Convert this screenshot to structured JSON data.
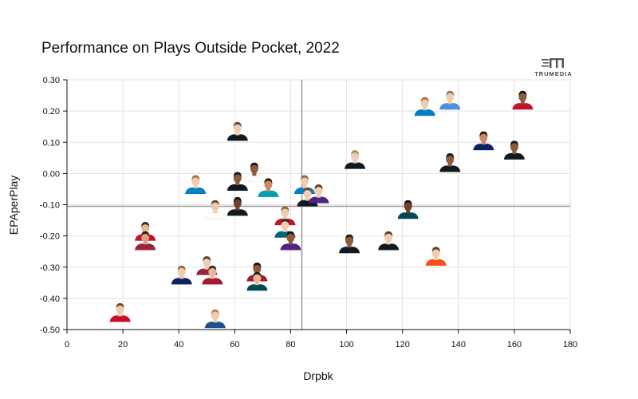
{
  "chart_data": {
    "type": "scatter",
    "title": "Performance on Plays Outside Pocket, 2022",
    "xlabel": "Drpbk",
    "ylabel": "EPAperPlay",
    "xlim": [
      0,
      180
    ],
    "ylim": [
      -0.5,
      0.3
    ],
    "xticks": [
      "0",
      "20",
      "40",
      "60",
      "80",
      "100",
      "120",
      "140",
      "160",
      "180"
    ],
    "yticks": [
      "0.30",
      "0.20",
      "0.10",
      "0.00",
      "-0.10",
      "-0.20",
      "-0.30",
      "-0.40",
      "-0.50"
    ],
    "grid": true,
    "reference_lines": {
      "x": 84,
      "y": -0.105
    },
    "points": [
      {
        "x": 19,
        "y": -0.46,
        "jersey": "#c8102e",
        "skin": "#f0cdb0",
        "hair": "#6b4a2b"
      },
      {
        "x": 28,
        "y": -0.2,
        "jersey": "#c8102e",
        "skin": "#e8b894",
        "hair": "#3b2a1c"
      },
      {
        "x": 28,
        "y": -0.23,
        "jersey": "#97233f",
        "skin": "#d9a07a",
        "hair": "#2b1d12"
      },
      {
        "x": 41,
        "y": -0.34,
        "jersey": "#0b2265",
        "skin": "#f0cdb0",
        "hair": "#8a6a45"
      },
      {
        "x": 46,
        "y": -0.05,
        "jersey": "#0080c6",
        "skin": "#f0cdb0",
        "hair": "#a07850"
      },
      {
        "x": 50,
        "y": -0.31,
        "jersey": "#97233f",
        "skin": "#f0cdb0",
        "hair": "#5a3e28"
      },
      {
        "x": 52,
        "y": -0.34,
        "jersey": "#a71930",
        "skin": "#e8b894",
        "hair": "#3b2a1c"
      },
      {
        "x": 53,
        "y": -0.48,
        "jersey": "#1d4f91",
        "skin": "#f0cdb0",
        "hair": "#b08a5a"
      },
      {
        "x": 53,
        "y": -0.13,
        "jersey": "#ffffff",
        "skin": "#f0cdb0",
        "hair": "#6b4a2b"
      },
      {
        "x": 61,
        "y": 0.12,
        "jersey": "#101820",
        "skin": "#f0cdb0",
        "hair": "#6b4a2b"
      },
      {
        "x": 61,
        "y": -0.04,
        "jersey": "#101820",
        "skin": "#8d5a3b",
        "hair": "#1a1a1a"
      },
      {
        "x": 61,
        "y": -0.12,
        "jersey": "#101820",
        "skin": "#6e4328",
        "hair": "#1a1a1a"
      },
      {
        "x": 67,
        "y": -0.01,
        "jersey": "#ffffff",
        "skin": "#8d5a3b",
        "hair": "#1a1a1a"
      },
      {
        "x": 68,
        "y": -0.33,
        "jersey": "#a71930",
        "skin": "#8d5a3b",
        "hair": "#1a1a1a"
      },
      {
        "x": 68,
        "y": -0.36,
        "jersey": "#004c54",
        "skin": "#e8b894",
        "hair": "#2b1d12"
      },
      {
        "x": 72,
        "y": -0.06,
        "jersey": "#00a3ad",
        "skin": "#c98a64",
        "hair": "#2b1d12"
      },
      {
        "x": 78,
        "y": -0.15,
        "jersey": "#c8102e",
        "skin": "#f0cdb0",
        "hair": "#8a6a45"
      },
      {
        "x": 78,
        "y": -0.19,
        "jersey": "#006778",
        "skin": "#f0cdb0",
        "hair": "#3b2a1c"
      },
      {
        "x": 80,
        "y": -0.23,
        "jersey": "#4f2683",
        "skin": "#8d5a3b",
        "hair": "#1a1a1a"
      },
      {
        "x": 85,
        "y": -0.05,
        "jersey": "#0080c6",
        "skin": "#f0cdb0",
        "hair": "#8a6a45"
      },
      {
        "x": 86,
        "y": -0.09,
        "jersey": "#101820",
        "skin": "#f0cdb0",
        "hair": "#6b4a2b"
      },
      {
        "x": 90,
        "y": -0.08,
        "jersey": "#4f2683",
        "skin": "#f0cdb0",
        "hair": "#5a3e28"
      },
      {
        "x": 101,
        "y": -0.24,
        "jersey": "#101820",
        "skin": "#8d5a3b",
        "hair": "#1a1a1a"
      },
      {
        "x": 103,
        "y": 0.03,
        "jersey": "#101820",
        "skin": "#f0cdb0",
        "hair": "#b08a5a"
      },
      {
        "x": 115,
        "y": -0.23,
        "jersey": "#101820",
        "skin": "#f0cdb0",
        "hair": "#5a3e28"
      },
      {
        "x": 122,
        "y": -0.13,
        "jersey": "#004c54",
        "skin": "#6e4328",
        "hair": "#1a1a1a"
      },
      {
        "x": 128,
        "y": 0.2,
        "jersey": "#0080c6",
        "skin": "#f0cdb0",
        "hair": "#a07850"
      },
      {
        "x": 132,
        "y": -0.28,
        "jersey": "#fb4f14",
        "skin": "#f0cdb0",
        "hair": "#5a3e28"
      },
      {
        "x": 137,
        "y": 0.22,
        "jersey": "#4b92db",
        "skin": "#f0cdb0",
        "hair": "#a07850"
      },
      {
        "x": 137,
        "y": 0.02,
        "jersey": "#101820",
        "skin": "#8d5a3b",
        "hair": "#1a1a1a"
      },
      {
        "x": 149,
        "y": 0.09,
        "jersey": "#0b2265",
        "skin": "#c98a64",
        "hair": "#2b1d12"
      },
      {
        "x": 160,
        "y": 0.06,
        "jersey": "#101820",
        "skin": "#8d5a3b",
        "hair": "#1a1a1a"
      },
      {
        "x": 163,
        "y": 0.22,
        "jersey": "#c8102e",
        "skin": "#8d5a3b",
        "hair": "#1a1a1a"
      }
    ]
  },
  "logo": {
    "text": "TRUMEDIA"
  }
}
